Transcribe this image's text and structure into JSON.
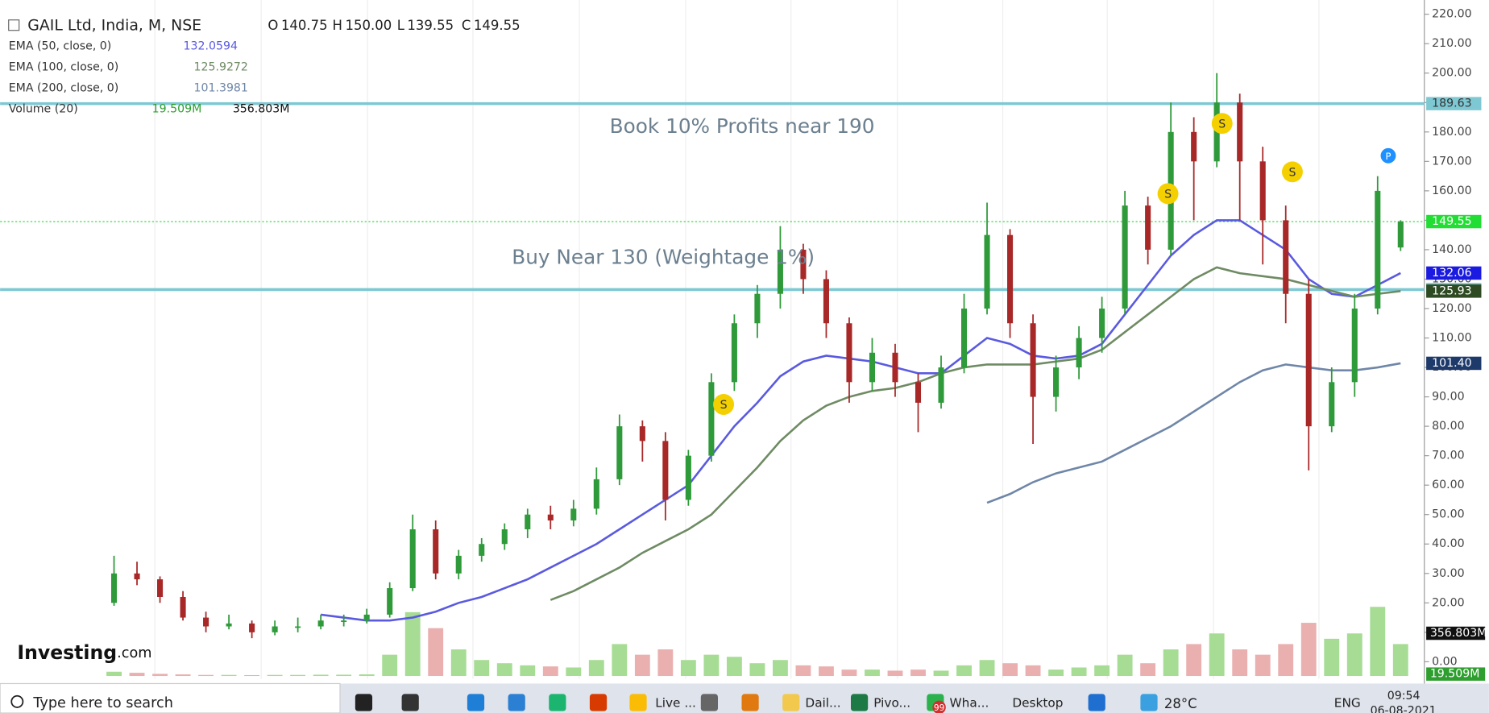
{
  "header": {
    "title": "GAIL Ltd, India, M, NSE",
    "ohlc": [
      {
        "label": "O",
        "value": "140.75"
      },
      {
        "label": "H",
        "value": "150.00"
      },
      {
        "label": "L",
        "value": "139.55"
      },
      {
        "label": "C",
        "value": "149.55"
      }
    ]
  },
  "indicators": [
    {
      "name": "EMA (50, close, 0)",
      "value": "132.0594",
      "color": "#5a5ae0",
      "values": [
        null,
        null,
        null,
        null,
        null,
        null,
        null,
        null,
        null,
        16,
        15,
        14,
        14,
        15,
        17,
        20,
        22,
        25,
        28,
        32,
        36,
        40,
        45,
        50,
        55,
        60,
        70,
        80,
        88,
        97,
        102,
        104,
        103,
        102,
        100,
        98,
        98,
        104,
        110,
        108,
        104,
        103,
        104,
        108,
        118,
        128,
        138,
        145,
        150,
        150,
        145,
        140,
        130,
        125,
        124,
        128,
        132.06
      ]
    },
    {
      "name": "EMA (100, close, 0)",
      "value": "125.9272",
      "color": "#6e8b63",
      "values": [
        null,
        null,
        null,
        null,
        null,
        null,
        null,
        null,
        null,
        null,
        null,
        null,
        null,
        null,
        null,
        null,
        null,
        null,
        null,
        21,
        24,
        28,
        32,
        37,
        41,
        45,
        50,
        58,
        66,
        75,
        82,
        87,
        90,
        92,
        93,
        95,
        98,
        100,
        101,
        101,
        101,
        102,
        103,
        106,
        112,
        118,
        124,
        130,
        134,
        132,
        131,
        130,
        128,
        126,
        124,
        125,
        125.93
      ]
    },
    {
      "name": "EMA (200, close, 0)",
      "value": "101.3981",
      "color": "#6f86a8",
      "values": [
        null,
        null,
        null,
        null,
        null,
        null,
        null,
        null,
        null,
        null,
        null,
        null,
        null,
        null,
        null,
        null,
        null,
        null,
        null,
        null,
        null,
        null,
        null,
        null,
        null,
        null,
        null,
        null,
        null,
        null,
        null,
        null,
        null,
        null,
        null,
        null,
        null,
        null,
        54,
        57,
        61,
        64,
        66,
        68,
        72,
        76,
        80,
        85,
        90,
        95,
        99,
        101,
        100,
        99,
        99,
        100,
        101.4
      ]
    },
    {
      "name": "Volume (20)",
      "value": "19.509M",
      "value2": "356.803M",
      "color": "#2e9e2e"
    }
  ],
  "chart_data": {
    "type": "candlestick",
    "candles": [
      [
        20,
        36,
        19,
        30
      ],
      [
        30,
        34,
        26,
        28
      ],
      [
        28,
        29,
        20,
        22
      ],
      [
        22,
        24,
        14,
        15
      ],
      [
        15,
        17,
        10,
        12
      ],
      [
        12,
        16,
        11,
        13
      ],
      [
        13,
        14,
        8,
        10
      ],
      [
        10,
        14,
        9,
        12
      ],
      [
        12,
        15,
        10,
        12
      ],
      [
        12,
        16,
        11,
        14
      ],
      [
        14,
        16,
        12,
        14
      ],
      [
        14,
        18,
        13,
        16
      ],
      [
        16,
        27,
        15,
        25
      ],
      [
        25,
        50,
        24,
        45
      ],
      [
        45,
        48,
        28,
        30
      ],
      [
        30,
        38,
        28,
        36
      ],
      [
        36,
        42,
        34,
        40
      ],
      [
        40,
        47,
        38,
        45
      ],
      [
        45,
        52,
        42,
        50
      ],
      [
        50,
        53,
        45,
        48
      ],
      [
        48,
        55,
        46,
        52
      ],
      [
        52,
        66,
        50,
        62
      ],
      [
        62,
        84,
        60,
        80
      ],
      [
        80,
        82,
        68,
        75
      ],
      [
        75,
        78,
        48,
        55
      ],
      [
        55,
        72,
        53,
        70
      ],
      [
        70,
        98,
        68,
        95
      ],
      [
        95,
        118,
        92,
        115
      ],
      [
        115,
        128,
        110,
        125
      ],
      [
        125,
        148,
        120,
        140
      ],
      [
        140,
        142,
        125,
        130
      ],
      [
        130,
        133,
        110,
        115
      ],
      [
        115,
        117,
        88,
        95
      ],
      [
        95,
        110,
        92,
        105
      ],
      [
        105,
        108,
        90,
        95
      ],
      [
        95,
        98,
        78,
        88
      ],
      [
        88,
        104,
        86,
        100
      ],
      [
        100,
        125,
        98,
        120
      ],
      [
        120,
        156,
        118,
        145
      ],
      [
        145,
        147,
        110,
        115
      ],
      [
        115,
        118,
        74,
        90
      ],
      [
        90,
        104,
        85,
        100
      ],
      [
        100,
        114,
        96,
        110
      ],
      [
        110,
        124,
        105,
        120
      ],
      [
        120,
        160,
        118,
        155
      ],
      [
        155,
        158,
        135,
        140
      ],
      [
        140,
        190,
        138,
        180
      ],
      [
        180,
        185,
        150,
        170
      ],
      [
        170,
        200,
        168,
        190
      ],
      [
        190,
        193,
        150,
        170
      ],
      [
        170,
        175,
        135,
        150
      ],
      [
        150,
        155,
        115,
        125
      ],
      [
        125,
        130,
        65,
        80
      ],
      [
        80,
        100,
        78,
        95
      ],
      [
        95,
        125,
        90,
        120
      ],
      [
        120,
        165,
        118,
        160
      ],
      [
        140.75,
        150,
        139.55,
        149.55
      ]
    ],
    "volume": [
      40,
      30,
      20,
      15,
      10,
      10,
      8,
      10,
      10,
      12,
      12,
      15,
      200,
      600,
      450,
      250,
      150,
      120,
      100,
      90,
      80,
      150,
      300,
      200,
      250,
      150,
      200,
      180,
      120,
      150,
      100,
      90,
      60,
      60,
      50,
      60,
      50,
      100,
      150,
      120,
      100,
      60,
      80,
      100,
      200,
      120,
      250,
      300,
      400,
      250,
      200,
      300,
      500,
      350,
      400,
      650,
      300
    ],
    "volume_ylim": [
      0,
      1000
    ],
    "up_color": "#2f9a3a",
    "down_color": "#a82828",
    "ylim": [
      0,
      220
    ],
    "yticks": [
      {
        "value": 0,
        "label": "0.00"
      },
      {
        "value": 10,
        "label": "10.00"
      },
      {
        "value": 20,
        "label": "20.00"
      },
      {
        "value": 30,
        "label": "30.00"
      },
      {
        "value": 40,
        "label": "40.00"
      },
      {
        "value": 50,
        "label": "50.00"
      },
      {
        "value": 60,
        "label": "60.00"
      },
      {
        "value": 70,
        "label": "70.00"
      },
      {
        "value": 80,
        "label": "80.00"
      },
      {
        "value": 90,
        "label": "90.00"
      },
      {
        "value": 100,
        "label": "100.00"
      },
      {
        "value": 110,
        "label": "110.00"
      },
      {
        "value": 120,
        "label": "120.00"
      },
      {
        "value": 130,
        "label": "130.00"
      },
      {
        "value": 140,
        "label": "140.00"
      },
      {
        "value": 150,
        "label": "150.00"
      },
      {
        "value": 160,
        "label": "160.00"
      },
      {
        "value": 170,
        "label": "170.00"
      },
      {
        "value": 180,
        "label": "180.00"
      },
      {
        "value": 190,
        "label": "190.00"
      },
      {
        "value": 200,
        "label": "200.00"
      },
      {
        "value": 210,
        "label": "210.00"
      },
      {
        "value": 220,
        "label": "220.00"
      }
    ],
    "levels": [
      {
        "value": 189.63,
        "color": "#7ec8d3",
        "text_color": "#333",
        "line": "solid"
      },
      {
        "value": 149.55,
        "color": "#22dd33",
        "text_color": "#fff",
        "line": "dotted"
      },
      {
        "value": 132.06,
        "color": "#1a1ae0",
        "text_color": "#fff"
      },
      {
        "value": 126.45,
        "color": "#7ec8d3",
        "text_color": "#333",
        "line": "solid"
      },
      {
        "value": 125.93,
        "color": "#2d4a22",
        "text_color": "#fff"
      },
      {
        "value": 101.4,
        "label": "101.40",
        "color": "#1d3a6b",
        "text_color": "#fff"
      }
    ],
    "annotations": [
      "Book 10% Profits near 190",
      "Buy Near 130 (Weightage 1%)"
    ],
    "signals": [
      "S",
      "S",
      "S",
      "S",
      "P"
    ]
  },
  "logo": {
    "brand": "Investing",
    "suffix": ".com"
  },
  "taskbar": {
    "search": "Type here to search",
    "apps": [
      "Live ...",
      "Dail...",
      "Pivo...",
      "Wha...",
      "Desktop"
    ],
    "badge": "99",
    "weather": "28°C",
    "lang": "ENG",
    "time": "09:54",
    "date": "06-08-2021"
  }
}
